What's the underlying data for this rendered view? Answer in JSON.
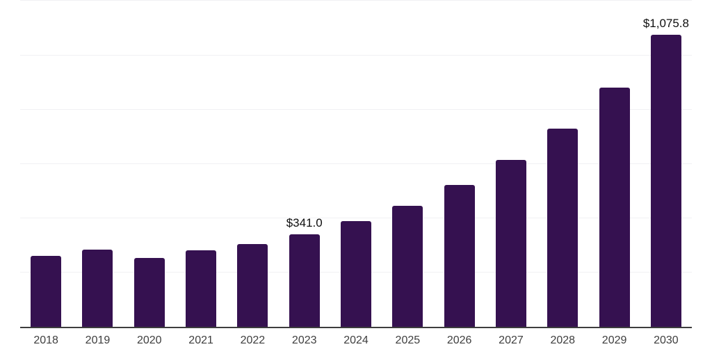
{
  "chart_data": {
    "type": "bar",
    "title": "",
    "xlabel": "",
    "ylabel": "",
    "categories": [
      "2018",
      "2019",
      "2020",
      "2021",
      "2022",
      "2023",
      "2024",
      "2025",
      "2026",
      "2027",
      "2028",
      "2029",
      "2030"
    ],
    "values": [
      260,
      284,
      254,
      282,
      305,
      341.0,
      389,
      446,
      522,
      615,
      730,
      880,
      1075.8
    ],
    "data_labels": [
      null,
      null,
      null,
      null,
      null,
      "$341.0",
      null,
      null,
      null,
      null,
      null,
      null,
      "$1,075.8"
    ],
    "ylim": [
      0,
      1200
    ],
    "gridline_step": 200,
    "grid": true,
    "legend": "none",
    "bar_color": "#351150",
    "gridline_color": "#f1f1f3",
    "axis_line_color": "#3d3d3d",
    "tick_label_color": "#3e3e3e",
    "data_label_color": "#0e0e0e"
  }
}
